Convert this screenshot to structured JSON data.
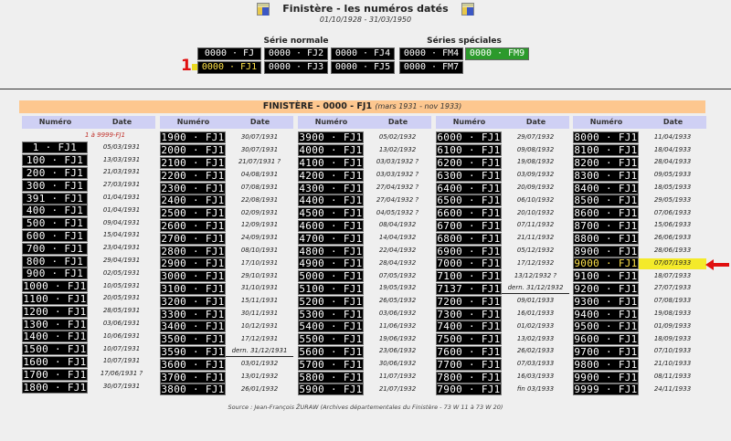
{
  "header": {
    "title": "Finistère - les numéros datés",
    "subtitle": "01/10/1928 - 31/03/1950",
    "crest_icon": "finistere-coat-of-arms-icon"
  },
  "series": {
    "normal_label": "Série normale",
    "special_label": "Séries spéciales",
    "normal": [
      "0000 · FJ",
      "0000 · FJ2",
      "0000 · FJ4",
      "0000 · FJ1",
      "0000 · FJ3",
      "0000 · FJ5"
    ],
    "special": [
      "0000 · FM4",
      "0000 · FM9",
      "0000 · FM7"
    ],
    "selected": "0000 · FJ1",
    "marker": "1"
  },
  "colors": {
    "banner": "#fdc78f",
    "col_header": "#cfd0f4",
    "highlight": "#f4ea2a",
    "arrow": "#e01010",
    "fm9": "#2c9a2c"
  },
  "table": {
    "title": "FINISTÈRE - 0000 - FJ1",
    "period": "(mars 1931 - nov 1933)",
    "col_numero": "Numéro",
    "col_date": "Date",
    "range_note": "1 à 9999-FJ1",
    "columns": [
      [
        [
          "1 · FJ1",
          "05/03/1931"
        ],
        [
          "100 · FJ1",
          "13/03/1931"
        ],
        [
          "200 · FJ1",
          "21/03/1931"
        ],
        [
          "300 · FJ1",
          "27/03/1931"
        ],
        [
          "391 · FJ1",
          "01/04/1931"
        ],
        [
          "400 · FJ1",
          "01/04/1931"
        ],
        [
          "500 · FJ1",
          "09/04/1931"
        ],
        [
          "600 · FJ1",
          "15/04/1931"
        ],
        [
          "700 · FJ1",
          "23/04/1931"
        ],
        [
          "800 · FJ1",
          "29/04/1931"
        ],
        [
          "900 · FJ1",
          "02/05/1931"
        ],
        [
          "1000 · FJ1",
          "10/05/1931"
        ],
        [
          "1100 · FJ1",
          "20/05/1931"
        ],
        [
          "1200 · FJ1",
          "28/05/1931"
        ],
        [
          "1300 · FJ1",
          "03/06/1931"
        ],
        [
          "1400 · FJ1",
          "10/06/1931"
        ],
        [
          "1500 · FJ1",
          "10/07/1931"
        ],
        [
          "1600 · FJ1",
          "10/07/1931"
        ],
        [
          "1700 · FJ1",
          "17/06/1931 ?"
        ],
        [
          "1800 · FJ1",
          "30/07/1931"
        ]
      ],
      [
        [
          "1900 · FJ1",
          "30/07/1931"
        ],
        [
          "2000 · FJ1",
          "30/07/1931"
        ],
        [
          "2100 · FJ1",
          "21/07/1931 ?"
        ],
        [
          "2200 · FJ1",
          "04/08/1931"
        ],
        [
          "2300 · FJ1",
          "07/08/1931"
        ],
        [
          "2400 · FJ1",
          "22/08/1931"
        ],
        [
          "2500 · FJ1",
          "02/09/1931"
        ],
        [
          "2600 · FJ1",
          "12/09/1931"
        ],
        [
          "2700 · FJ1",
          "24/09/1931"
        ],
        [
          "2800 · FJ1",
          "08/10/1931"
        ],
        [
          "2900 · FJ1",
          "17/10/1931"
        ],
        [
          "3000 · FJ1",
          "29/10/1931"
        ],
        [
          "3100 · FJ1",
          "31/10/1931"
        ],
        [
          "3200 · FJ1",
          "15/11/1931"
        ],
        [
          "3300 · FJ1",
          "30/11/1931"
        ],
        [
          "3400 · FJ1",
          "10/12/1931"
        ],
        [
          "3500 · FJ1",
          "17/12/1931"
        ],
        [
          "3590 · FJ1",
          "dern. 31/12/1931",
          "last"
        ],
        [
          "3600 · FJ1",
          "03/01/1932"
        ],
        [
          "3700 · FJ1",
          "13/01/1932"
        ],
        [
          "3800 · FJ1",
          "26/01/1932"
        ]
      ],
      [
        [
          "3900 · FJ1",
          "05/02/1932"
        ],
        [
          "4000 · FJ1",
          "13/02/1932"
        ],
        [
          "4100 · FJ1",
          "03/03/1932 ?"
        ],
        [
          "4200 · FJ1",
          "03/03/1932 ?"
        ],
        [
          "4300 · FJ1",
          "27/04/1932 ?"
        ],
        [
          "4400 · FJ1",
          "27/04/1932 ?"
        ],
        [
          "4500 · FJ1",
          "04/05/1932 ?"
        ],
        [
          "4600 · FJ1",
          "08/04/1932"
        ],
        [
          "4700 · FJ1",
          "14/04/1932"
        ],
        [
          "4800 · FJ1",
          "22/04/1932"
        ],
        [
          "4900 · FJ1",
          "28/04/1932"
        ],
        [
          "5000 · FJ1",
          "07/05/1932"
        ],
        [
          "5100 · FJ1",
          "19/05/1932"
        ],
        [
          "5200 · FJ1",
          "26/05/1932"
        ],
        [
          "5300 · FJ1",
          "03/06/1932"
        ],
        [
          "5400 · FJ1",
          "11/06/1932"
        ],
        [
          "5500 · FJ1",
          "19/06/1932"
        ],
        [
          "5600 · FJ1",
          "23/06/1932"
        ],
        [
          "5700 · FJ1",
          "30/06/1932"
        ],
        [
          "5800 · FJ1",
          "11/07/1932"
        ],
        [
          "5900 · FJ1",
          "21/07/1932"
        ]
      ],
      [
        [
          "6000 · FJ1",
          "29/07/1932"
        ],
        [
          "6100 · FJ1",
          "09/08/1932"
        ],
        [
          "6200 · FJ1",
          "19/08/1932"
        ],
        [
          "6300 · FJ1",
          "03/09/1932"
        ],
        [
          "6400 · FJ1",
          "20/09/1932"
        ],
        [
          "6500 · FJ1",
          "06/10/1932"
        ],
        [
          "6600 · FJ1",
          "20/10/1932"
        ],
        [
          "6700 · FJ1",
          "07/11/1932"
        ],
        [
          "6800 · FJ1",
          "21/11/1932"
        ],
        [
          "6900 · FJ1",
          "05/12/1932"
        ],
        [
          "7000 · FJ1",
          "17/12/1932"
        ],
        [
          "7100 · FJ1",
          "13/12/1932 ?"
        ],
        [
          "7137 · FJ1",
          "dern. 31/12/1932",
          "last"
        ],
        [
          "7200 · FJ1",
          "09/01/1933"
        ],
        [
          "7300 · FJ1",
          "16/01/1933"
        ],
        [
          "7400 · FJ1",
          "01/02/1933"
        ],
        [
          "7500 · FJ1",
          "13/02/1933"
        ],
        [
          "7600 · FJ1",
          "26/02/1933"
        ],
        [
          "7700 · FJ1",
          "07/03/1933"
        ],
        [
          "7800 · FJ1",
          "16/03/1933"
        ],
        [
          "7900 · FJ1",
          "fin 03/1933"
        ]
      ],
      [
        [
          "8000 · FJ1",
          "11/04/1933"
        ],
        [
          "8100 · FJ1",
          "18/04/1933"
        ],
        [
          "8200 · FJ1",
          "28/04/1933"
        ],
        [
          "8300 · FJ1",
          "09/05/1933"
        ],
        [
          "8400 · FJ1",
          "18/05/1933"
        ],
        [
          "8500 · FJ1",
          "29/05/1933"
        ],
        [
          "8600 · FJ1",
          "07/06/1933"
        ],
        [
          "8700 · FJ1",
          "15/06/1933"
        ],
        [
          "8800 · FJ1",
          "26/06/1933"
        ],
        [
          "8900 · FJ1",
          "28/06/1933"
        ],
        [
          "9000 · FJ1",
          "07/07/1933",
          "hl"
        ],
        [
          "9100 · FJ1",
          "18/07/1933"
        ],
        [
          "9200 · FJ1",
          "27/07/1933"
        ],
        [
          "9300 · FJ1",
          "07/08/1933"
        ],
        [
          "9400 · FJ1",
          "19/08/1933"
        ],
        [
          "9500 · FJ1",
          "01/09/1933"
        ],
        [
          "9600 · FJ1",
          "18/09/1933"
        ],
        [
          "9700 · FJ1",
          "07/10/1933"
        ],
        [
          "9800 · FJ1",
          "21/10/1933"
        ],
        [
          "9900 · FJ1",
          "08/11/1933"
        ],
        [
          "9999 · FJ1",
          "24/11/1933"
        ]
      ]
    ]
  },
  "source": "Source : Jean-François ŽURAW (Archives départementales du Finistère - 73 W 11 à 73 W 20)"
}
